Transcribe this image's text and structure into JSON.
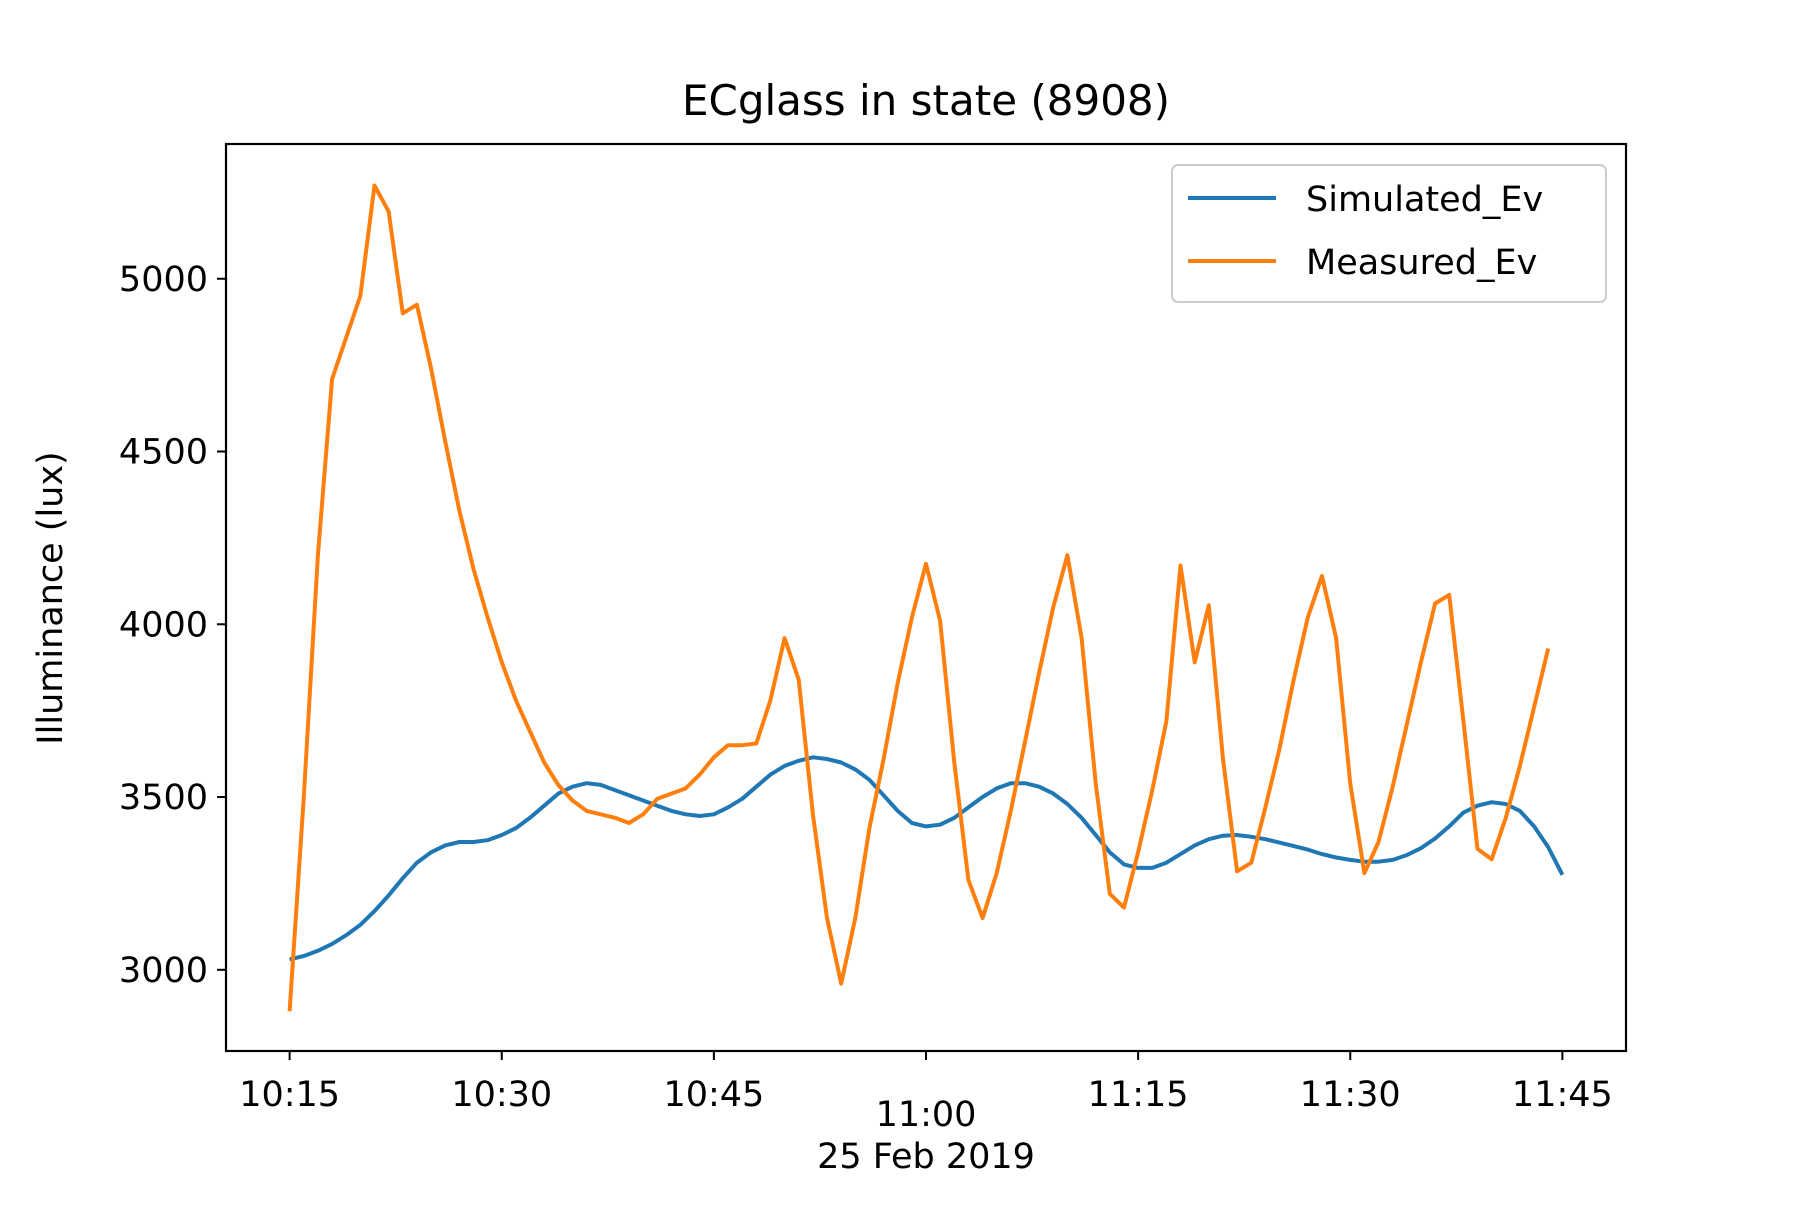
{
  "chart_data": {
    "type": "line",
    "title": "ECglass in state (8908)",
    "xlabel": "25 Feb 2019",
    "ylabel": "Illuminance (lux)",
    "x_unit": "time (HH:MM), 25 Feb 2019",
    "xlim": [
      "10:10:30",
      "11:49:30"
    ],
    "ylim": [
      2765,
      5390
    ],
    "x_ticks": [
      {
        "value": "10:15",
        "label": "10:15"
      },
      {
        "value": "10:30",
        "label": "10:30"
      },
      {
        "value": "10:45",
        "label": "10:45"
      },
      {
        "value": "11:00",
        "label": "11:00"
      },
      {
        "value": "11:15",
        "label": "11:15"
      },
      {
        "value": "11:30",
        "label": "11:30"
      },
      {
        "value": "11:45",
        "label": "11:45"
      }
    ],
    "y_ticks": [
      3000,
      3500,
      4000,
      4500,
      5000
    ],
    "grid": false,
    "legend_position": "top-right",
    "series": [
      {
        "name": "Simulated_Ev",
        "color": "#1f77b4",
        "points": [
          [
            "10:15",
            3030
          ],
          [
            "10:16",
            3040
          ],
          [
            "10:17",
            3055
          ],
          [
            "10:18",
            3075
          ],
          [
            "10:19",
            3100
          ],
          [
            "10:20",
            3130
          ],
          [
            "10:21",
            3170
          ],
          [
            "10:22",
            3215
          ],
          [
            "10:23",
            3265
          ],
          [
            "10:24",
            3310
          ],
          [
            "10:25",
            3340
          ],
          [
            "10:26",
            3360
          ],
          [
            "10:27",
            3370
          ],
          [
            "10:28",
            3370
          ],
          [
            "10:29",
            3375
          ],
          [
            "10:30",
            3390
          ],
          [
            "10:31",
            3410
          ],
          [
            "10:32",
            3440
          ],
          [
            "10:33",
            3475
          ],
          [
            "10:34",
            3510
          ],
          [
            "10:35",
            3530
          ],
          [
            "10:36",
            3540
          ],
          [
            "10:37",
            3535
          ],
          [
            "10:38",
            3520
          ],
          [
            "10:39",
            3505
          ],
          [
            "10:40",
            3490
          ],
          [
            "10:41",
            3475
          ],
          [
            "10:42",
            3460
          ],
          [
            "10:43",
            3450
          ],
          [
            "10:44",
            3445
          ],
          [
            "10:45",
            3450
          ],
          [
            "10:46",
            3470
          ],
          [
            "10:47",
            3495
          ],
          [
            "10:48",
            3530
          ],
          [
            "10:49",
            3565
          ],
          [
            "10:50",
            3590
          ],
          [
            "10:51",
            3605
          ],
          [
            "10:52",
            3615
          ],
          [
            "10:53",
            3610
          ],
          [
            "10:54",
            3600
          ],
          [
            "10:55",
            3580
          ],
          [
            "10:56",
            3550
          ],
          [
            "10:57",
            3505
          ],
          [
            "10:58",
            3460
          ],
          [
            "10:59",
            3425
          ],
          [
            "11:00",
            3415
          ],
          [
            "11:01",
            3420
          ],
          [
            "11:02",
            3440
          ],
          [
            "11:03",
            3470
          ],
          [
            "11:04",
            3500
          ],
          [
            "11:05",
            3525
          ],
          [
            "11:06",
            3540
          ],
          [
            "11:07",
            3540
          ],
          [
            "11:08",
            3530
          ],
          [
            "11:09",
            3510
          ],
          [
            "11:10",
            3480
          ],
          [
            "11:11",
            3440
          ],
          [
            "11:12",
            3390
          ],
          [
            "11:13",
            3340
          ],
          [
            "11:14",
            3305
          ],
          [
            "11:15",
            3295
          ],
          [
            "11:16",
            3295
          ],
          [
            "11:17",
            3310
          ],
          [
            "11:18",
            3335
          ],
          [
            "11:19",
            3360
          ],
          [
            "11:20",
            3378
          ],
          [
            "11:21",
            3388
          ],
          [
            "11:22",
            3390
          ],
          [
            "11:23",
            3385
          ],
          [
            "11:24",
            3378
          ],
          [
            "11:25",
            3368
          ],
          [
            "11:26",
            3358
          ],
          [
            "11:27",
            3348
          ],
          [
            "11:28",
            3335
          ],
          [
            "11:29",
            3325
          ],
          [
            "11:30",
            3318
          ],
          [
            "11:31",
            3313
          ],
          [
            "11:32",
            3313
          ],
          [
            "11:33",
            3318
          ],
          [
            "11:34",
            3332
          ],
          [
            "11:35",
            3352
          ],
          [
            "11:36",
            3380
          ],
          [
            "11:37",
            3415
          ],
          [
            "11:38",
            3455
          ],
          [
            "11:39",
            3475
          ],
          [
            "11:40",
            3485
          ],
          [
            "11:41",
            3480
          ],
          [
            "11:42",
            3460
          ],
          [
            "11:43",
            3415
          ],
          [
            "11:44",
            3355
          ],
          [
            "11:45",
            3275
          ]
        ]
      },
      {
        "name": "Measured_Ev",
        "color": "#ff7f0e",
        "points": [
          [
            "10:15",
            2880
          ],
          [
            "10:16",
            3500
          ],
          [
            "10:17",
            4200
          ],
          [
            "10:18",
            4710
          ],
          [
            "10:19",
            4830
          ],
          [
            "10:20",
            4950
          ],
          [
            "10:21",
            5270
          ],
          [
            "10:22",
            5195
          ],
          [
            "10:23",
            4900
          ],
          [
            "10:24",
            4925
          ],
          [
            "10:25",
            4740
          ],
          [
            "10:26",
            4530
          ],
          [
            "10:27",
            4330
          ],
          [
            "10:28",
            4160
          ],
          [
            "10:29",
            4020
          ],
          [
            "10:30",
            3890
          ],
          [
            "10:31",
            3780
          ],
          [
            "10:32",
            3690
          ],
          [
            "10:33",
            3600
          ],
          [
            "10:34",
            3535
          ],
          [
            "10:35",
            3490
          ],
          [
            "10:36",
            3460
          ],
          [
            "10:37",
            3450
          ],
          [
            "10:38",
            3440
          ],
          [
            "10:39",
            3425
          ],
          [
            "10:40",
            3450
          ],
          [
            "10:41",
            3495
          ],
          [
            "10:42",
            3510
          ],
          [
            "10:43",
            3525
          ],
          [
            "10:44",
            3565
          ],
          [
            "10:45",
            3615
          ],
          [
            "10:46",
            3650
          ],
          [
            "10:47",
            3650
          ],
          [
            "10:48",
            3655
          ],
          [
            "10:49",
            3780
          ],
          [
            "10:50",
            3960
          ],
          [
            "10:51",
            3840
          ],
          [
            "10:52",
            3450
          ],
          [
            "10:53",
            3150
          ],
          [
            "10:54",
            2960
          ],
          [
            "10:55",
            3150
          ],
          [
            "10:56",
            3410
          ],
          [
            "10:57",
            3610
          ],
          [
            "10:58",
            3830
          ],
          [
            "10:59",
            4020
          ],
          [
            "11:00",
            4175
          ],
          [
            "11:01",
            4010
          ],
          [
            "11:02",
            3600
          ],
          [
            "11:03",
            3260
          ],
          [
            "11:04",
            3150
          ],
          [
            "11:05",
            3280
          ],
          [
            "11:06",
            3460
          ],
          [
            "11:07",
            3660
          ],
          [
            "11:08",
            3860
          ],
          [
            "11:09",
            4050
          ],
          [
            "11:10",
            4200
          ],
          [
            "11:11",
            3960
          ],
          [
            "11:12",
            3540
          ],
          [
            "11:13",
            3220
          ],
          [
            "11:14",
            3180
          ],
          [
            "11:15",
            3340
          ],
          [
            "11:16",
            3520
          ],
          [
            "11:17",
            3720
          ],
          [
            "11:18",
            4170
          ],
          [
            "11:19",
            3890
          ],
          [
            "11:20",
            4055
          ],
          [
            "11:21",
            3610
          ],
          [
            "11:22",
            3285
          ],
          [
            "11:23",
            3310
          ],
          [
            "11:24",
            3470
          ],
          [
            "11:25",
            3640
          ],
          [
            "11:26",
            3840
          ],
          [
            "11:27",
            4020
          ],
          [
            "11:28",
            4140
          ],
          [
            "11:29",
            3960
          ],
          [
            "11:30",
            3540
          ],
          [
            "11:31",
            3280
          ],
          [
            "11:32",
            3370
          ],
          [
            "11:33",
            3530
          ],
          [
            "11:34",
            3710
          ],
          [
            "11:35",
            3890
          ],
          [
            "11:36",
            4060
          ],
          [
            "11:37",
            4085
          ],
          [
            "11:38",
            3720
          ],
          [
            "11:39",
            3350
          ],
          [
            "11:40",
            3320
          ],
          [
            "11:41",
            3440
          ],
          [
            "11:42",
            3590
          ],
          [
            "11:43",
            3760
          ],
          [
            "11:44",
            3930
          ]
        ]
      }
    ]
  }
}
